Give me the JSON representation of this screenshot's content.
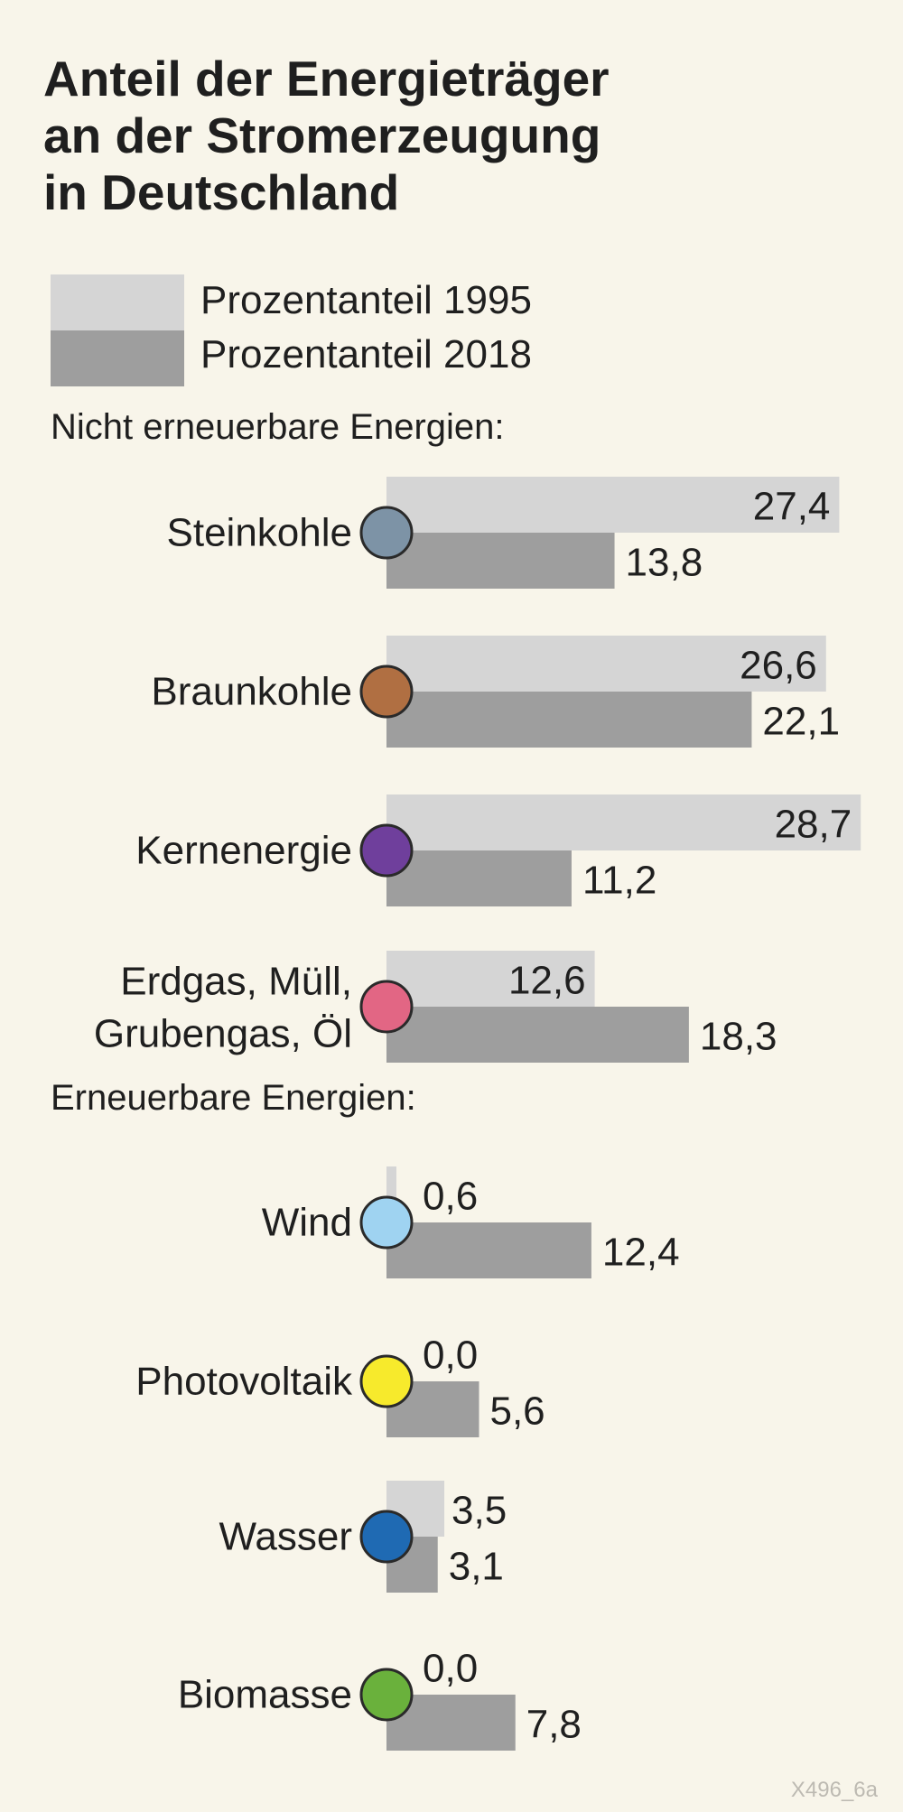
{
  "chart_data": {
    "type": "bar",
    "title": "Anteil der Energieträger an der Stromerzeugung in Deutschland",
    "title_lines": [
      "Anteil der Energieträger",
      "an der Stromerzeugung",
      "in Deutschland"
    ],
    "series": [
      {
        "name": "Prozentanteil 1995",
        "color": "#d5d5d5",
        "values": [
          27.4,
          26.6,
          28.7,
          12.6,
          0.6,
          0.0,
          3.5,
          0.0
        ]
      },
      {
        "name": "Prozentanteil 2018",
        "color": "#9e9e9e",
        "values": [
          13.8,
          22.1,
          11.2,
          18.3,
          12.4,
          5.6,
          3.1,
          7.8
        ]
      }
    ],
    "groups": [
      {
        "name": "Nicht erneuerbare Energien:",
        "categories": [
          {
            "label_lines": [
              "Steinkohle"
            ],
            "color": "#7d93a6",
            "v1995": "27,4",
            "v2018": "13,8"
          },
          {
            "label_lines": [
              "Braunkohle"
            ],
            "color": "#b06f42",
            "v1995": "26,6",
            "v2018": "22,1"
          },
          {
            "label_lines": [
              "Kernenergie"
            ],
            "color": "#6f3f9c",
            "v1995": "28,7",
            "v2018": "11,2"
          },
          {
            "label_lines": [
              "Erdgas, Müll,",
              "Grubengas, Öl"
            ],
            "color": "#e26684",
            "v1995": "12,6",
            "v2018": "18,3"
          }
        ]
      },
      {
        "name": "Erneuerbare Energien:",
        "categories": [
          {
            "label_lines": [
              "Wind"
            ],
            "color": "#9fd3f1",
            "v1995": "0,6",
            "v2018": "12,4"
          },
          {
            "label_lines": [
              "Photovoltaik"
            ],
            "color": "#f7ea2c",
            "v1995": "0,0",
            "v2018": "5,6"
          },
          {
            "label_lines": [
              "Wasser"
            ],
            "color": "#1f6ab3",
            "v1995": "3,5",
            "v2018": "3,1"
          },
          {
            "label_lines": [
              "Biomasse"
            ],
            "color": "#6ab13c",
            "v1995": "0,0",
            "v2018": "7,8"
          }
        ]
      }
    ],
    "unit": "Prozent",
    "grid": false,
    "legend": "top-left"
  },
  "footer": "X496_6a"
}
